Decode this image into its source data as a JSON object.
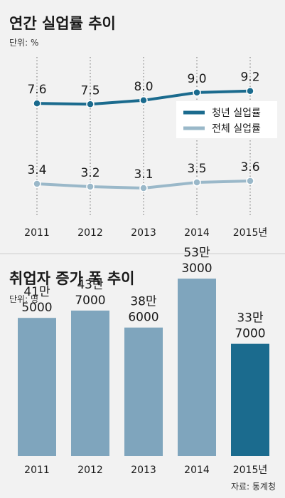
{
  "colors": {
    "page_bg": "#f2f2f2",
    "divider": "#cfcfcf",
    "youth": "#1b6b8e",
    "total": "#9ab8c9",
    "bar": "#7fa5bd",
    "bar_highlight": "#1b6b8e"
  },
  "chart_data": [
    {
      "type": "line",
      "title": "연간 실업률 추이",
      "unit": "단위: %",
      "x": [
        "2011",
        "2012",
        "2013",
        "2014",
        "2015년"
      ],
      "series": [
        {
          "name": "청년 실업률",
          "values": [
            7.6,
            7.5,
            8.0,
            9.0,
            9.2
          ],
          "labels": [
            "7.6",
            "7.5",
            "8.0",
            "9.0",
            "9.2"
          ]
        },
        {
          "name": "전체 실업률",
          "values": [
            3.4,
            3.2,
            3.1,
            3.5,
            3.6
          ],
          "labels": [
            "3.4",
            "3.2",
            "3.1",
            "3.5",
            "3.6"
          ]
        }
      ],
      "legend": "right",
      "grid": "vertical dotted"
    },
    {
      "type": "bar",
      "title": "취업자 증가 폭 추이",
      "unit": "단위: 명",
      "categories": [
        "2011",
        "2012",
        "2013",
        "2014",
        "2015년"
      ],
      "values": [
        415000,
        437000,
        386000,
        533000,
        337000
      ],
      "labels": [
        [
          "41만",
          "5000"
        ],
        [
          "43만",
          "7000"
        ],
        [
          "38만",
          "6000"
        ],
        [
          "53만",
          "3000"
        ],
        [
          "33만",
          "7000"
        ]
      ],
      "highlight_last": true
    }
  ],
  "source": "자료: 통계청"
}
